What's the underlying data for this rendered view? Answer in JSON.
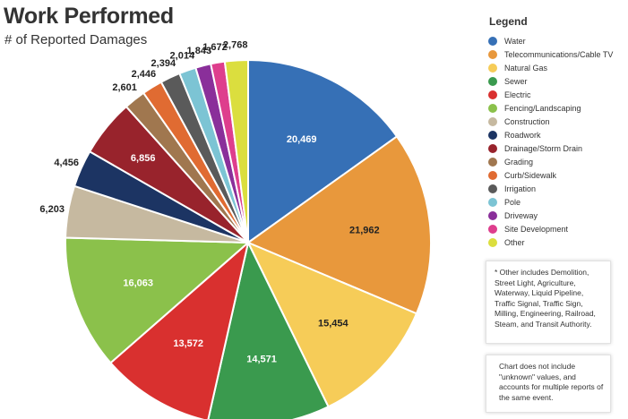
{
  "title": "Work Performed",
  "subtitle": "# of Reported Damages",
  "legend_title": "Legend",
  "chart_data": {
    "type": "pie",
    "title": "Work Performed",
    "subtitle": "# of Reported Damages",
    "legend_placement": "right",
    "labels": [
      "Water",
      "Telecommunications/Cable TV",
      "Natural Gas",
      "Sewer",
      "Electric",
      "Fencing/Landscaping",
      "Construction",
      "Roadwork",
      "Drainage/Storm Drain",
      "Grading",
      "Curb/Sidewalk",
      "Irrigation",
      "Pole",
      "Driveway",
      "Site Development",
      "Other"
    ],
    "values": [
      20469,
      21962,
      15454,
      14571,
      13572,
      16063,
      6203,
      4456,
      6856,
      2601,
      2446,
      2394,
      2014,
      1843,
      1672,
      2768
    ],
    "value_labels": [
      "20,469",
      "21,962",
      "15,454",
      "14,571",
      "13,572",
      "16,063",
      "6,203",
      "4,456",
      "6,856",
      "2,601",
      "2,446",
      "2,394",
      "2,014",
      "1,843",
      "1,672",
      "2,768"
    ],
    "colors": [
      "#3670b6",
      "#e8983c",
      "#f6cc58",
      "#3a9a4e",
      "#d9302f",
      "#8bc14b",
      "#c6b9a0",
      "#1c3463",
      "#98232c",
      "#a0774f",
      "#e06b32",
      "#5a5a5a",
      "#7cc4d4",
      "#8a2f9a",
      "#de3e8d",
      "#dbde3e"
    ]
  },
  "notes": [
    "* Other includes Demolition, Street Light, Agriculture, Waterway, Liquid Pipeline, Traffic Signal, Traffic Sign, Milling, Engineering, Railroad, Steam, and Transit Authority.",
    "Chart does not include \"unknown\" values, and accounts for multiple reports of the same event."
  ]
}
